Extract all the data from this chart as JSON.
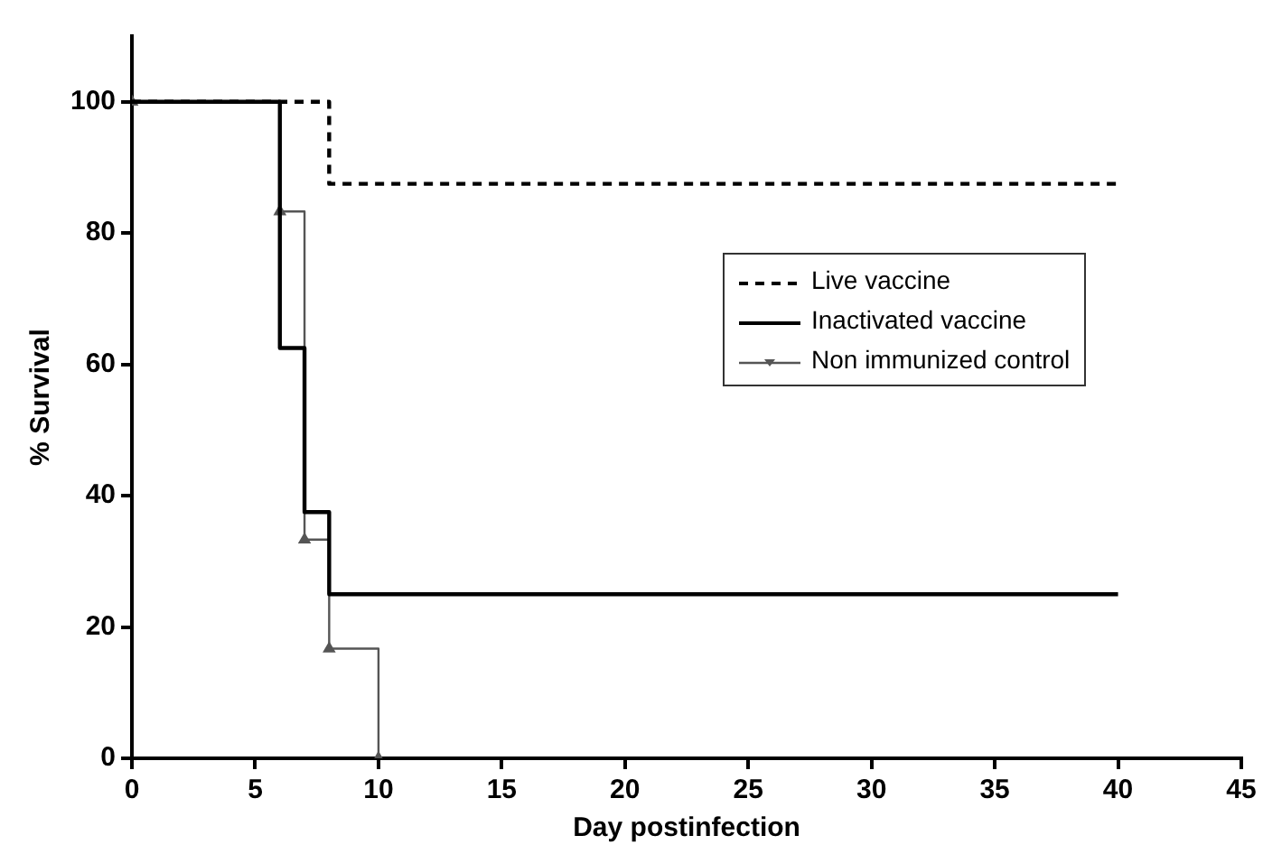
{
  "chart_data": {
    "type": "step",
    "xlabel": "Day postinfection",
    "ylabel": "% Survival",
    "xlim": [
      0,
      45
    ],
    "xticks": [
      0,
      5,
      10,
      15,
      20,
      25,
      30,
      35,
      40,
      45
    ],
    "ylim": [
      0,
      110
    ],
    "yticks": [
      0,
      20,
      40,
      60,
      80,
      100
    ],
    "grid": false,
    "legend": "right",
    "series": [
      {
        "name": "Live vaccine",
        "color": "#000000",
        "line_style": "dashed",
        "marker": "none",
        "x": [
          0,
          8,
          40
        ],
        "values": [
          100,
          87.5,
          87.5
        ]
      },
      {
        "name": "Inactivated vaccine",
        "color": "#000000",
        "line_style": "solid",
        "marker": "none",
        "x": [
          0,
          6,
          7,
          8,
          40
        ],
        "values": [
          100,
          62.5,
          37.5,
          25,
          25
        ]
      },
      {
        "name": "Non immunized control",
        "color": "#555555",
        "line_style": "solid",
        "marker": "triangle",
        "x": [
          0,
          6,
          7,
          8,
          10
        ],
        "values": [
          100,
          83.3,
          33.3,
          16.7,
          0
        ]
      }
    ]
  }
}
